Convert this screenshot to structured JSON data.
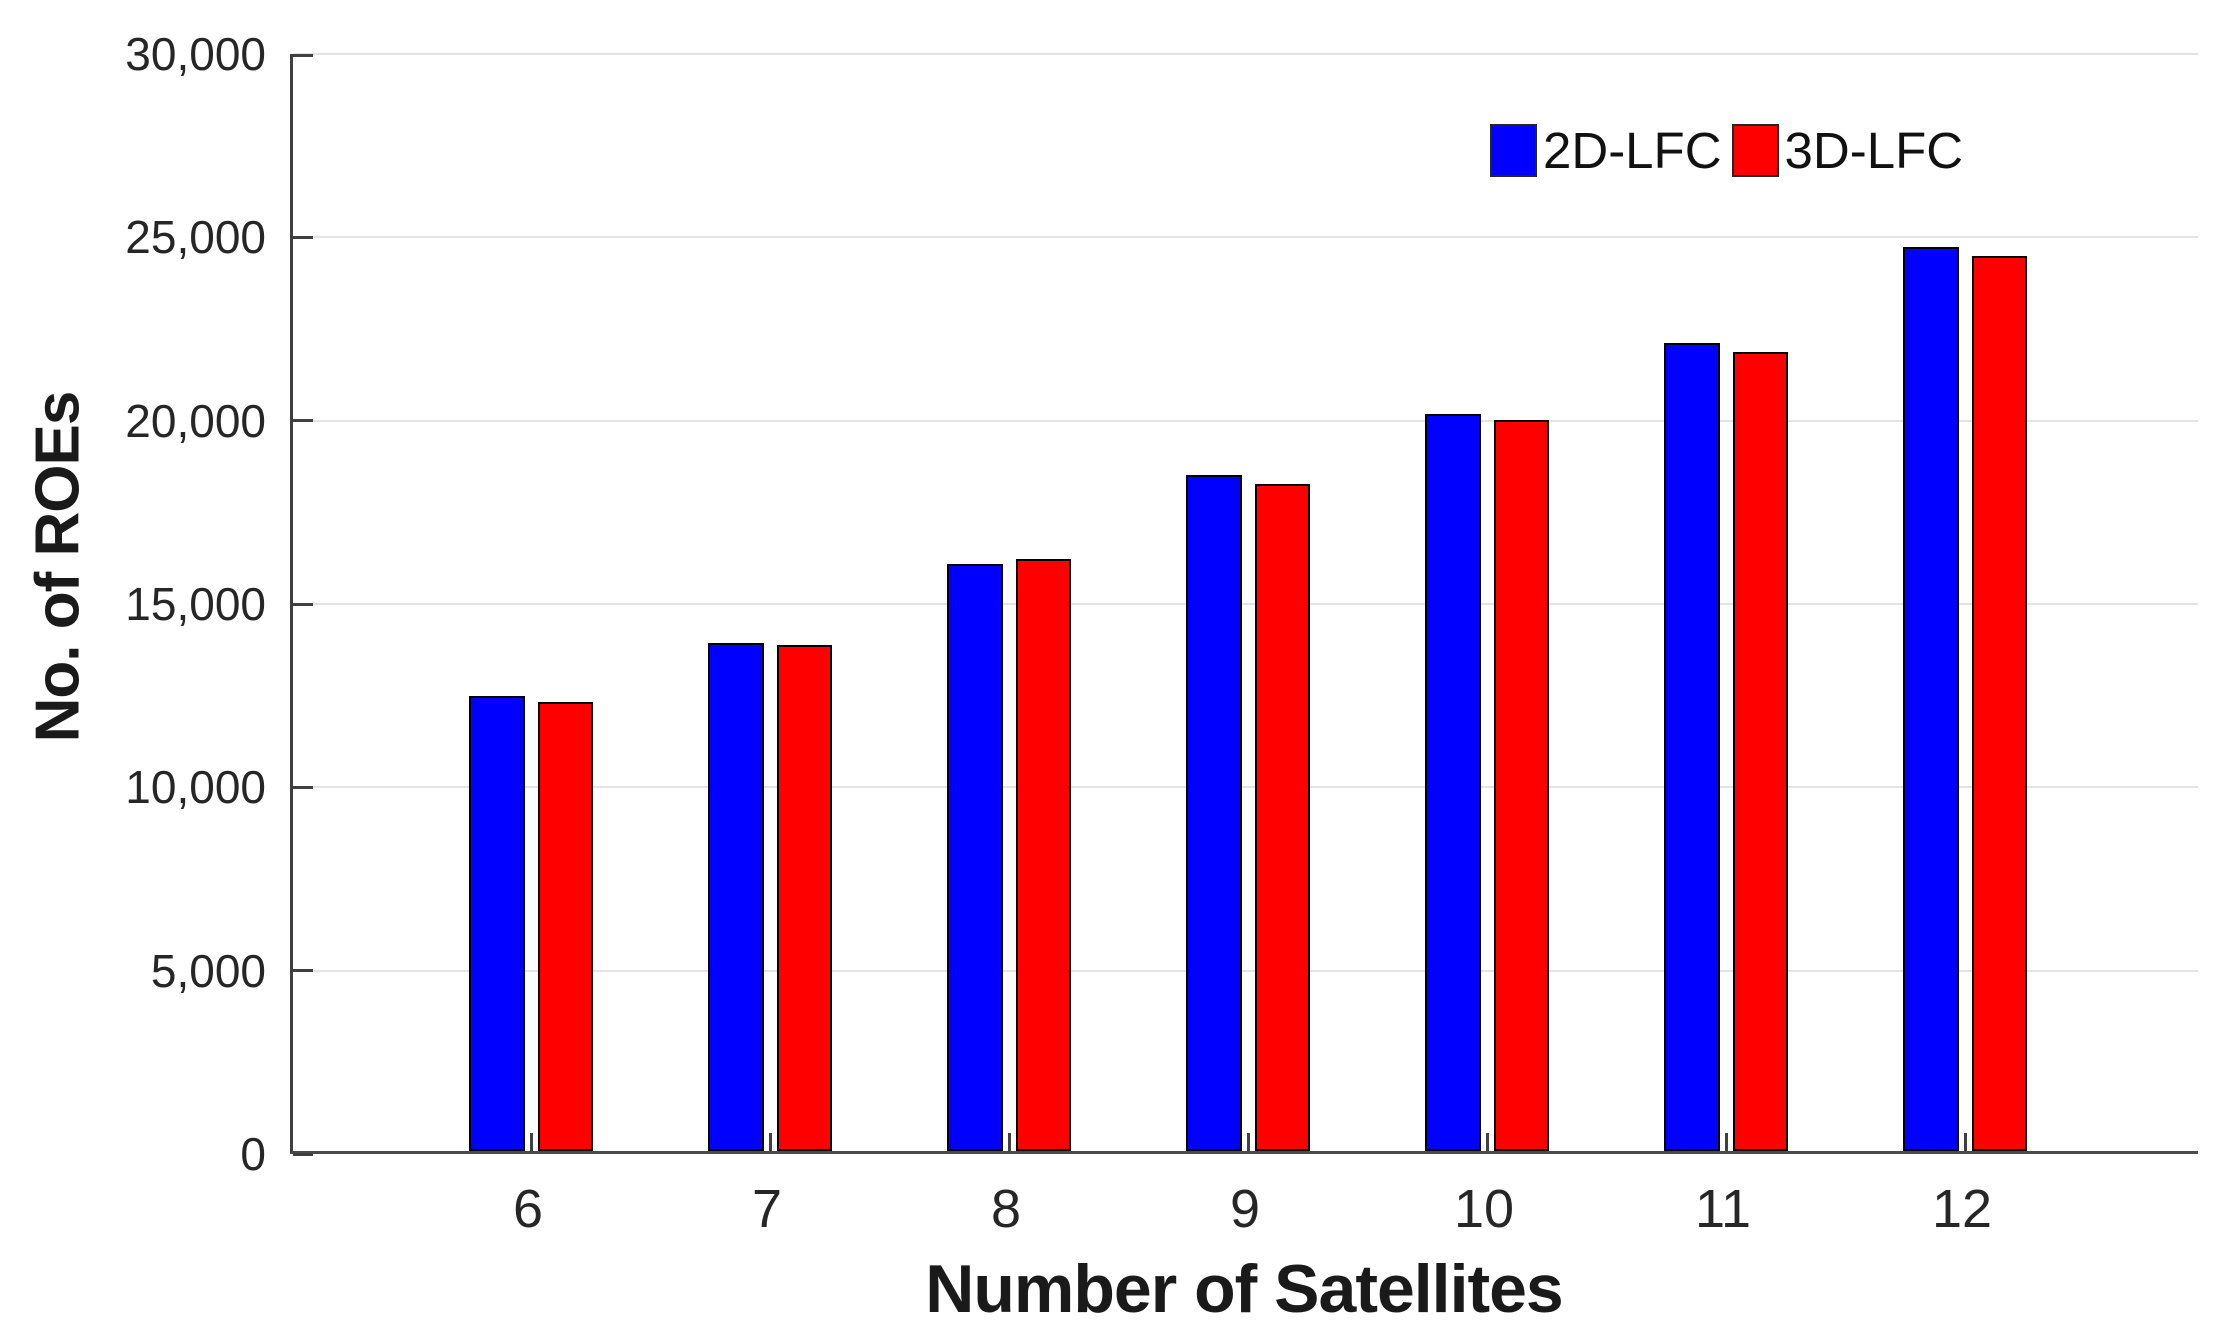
{
  "chart_data": {
    "type": "bar",
    "title": "",
    "xlabel": "Number of Satellites",
    "ylabel": "No. of ROEs",
    "categories": [
      "6",
      "7",
      "8",
      "9",
      "10",
      "11",
      "12"
    ],
    "series": [
      {
        "name": "2D-LFC",
        "color": "#0000ff",
        "values": [
          12400,
          13850,
          16000,
          18450,
          20100,
          22050,
          24650
        ]
      },
      {
        "name": "3D-LFC",
        "color": "#ff0000",
        "values": [
          12250,
          13800,
          16150,
          18200,
          19950,
          21800,
          24400
        ]
      }
    ],
    "ylim": [
      0,
      30000
    ],
    "yticks": [
      0,
      5000,
      10000,
      15000,
      20000,
      25000,
      30000
    ],
    "ytick_labels": [
      "0",
      "5,000",
      "10,000",
      "15,000",
      "20,000",
      "25,000",
      "30,000"
    ],
    "grid": "horizontal-only",
    "legend_position": "top-right-inside",
    "colors": {
      "bar_edge": "#000000",
      "gridline": "#e3e3e3",
      "axis": "#404040",
      "tick_text": "#262626",
      "label_text": "#1a1a1a"
    }
  }
}
